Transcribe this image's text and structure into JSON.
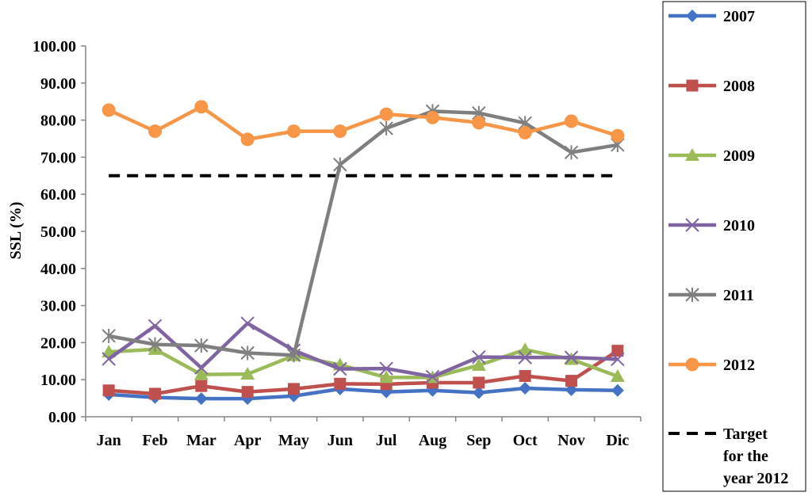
{
  "chart_data": {
    "type": "line",
    "categories": [
      "Jan",
      "Feb",
      "Mar",
      "Apr",
      "May",
      "Jun",
      "Jul",
      "Aug",
      "Sep",
      "Oct",
      "Nov",
      "Dic"
    ],
    "ylabel": "SSL (%)",
    "ylim": [
      0,
      100
    ],
    "yticks": [
      "0.00",
      "10.00",
      "20.00",
      "30.00",
      "40.00",
      "50.00",
      "60.00",
      "70.00",
      "80.00",
      "90.00",
      "100.00"
    ],
    "grid": false,
    "legend_position": "right",
    "series": [
      {
        "name": "2007",
        "color": "#4472C4",
        "marker": "diamond",
        "values": [
          6.0,
          5.2,
          4.9,
          4.9,
          5.6,
          7.5,
          6.7,
          7.1,
          6.5,
          7.7,
          7.3,
          7.1
        ]
      },
      {
        "name": "2008",
        "color": "#C0504D",
        "marker": "square",
        "values": [
          7.1,
          6.2,
          8.3,
          6.7,
          7.5,
          8.9,
          8.8,
          9.2,
          9.2,
          11.0,
          9.7,
          17.8
        ]
      },
      {
        "name": "2009",
        "color": "#9BBB59",
        "marker": "triangle",
        "values": [
          17.5,
          18.2,
          11.4,
          11.5,
          16.5,
          14.0,
          10.6,
          10.6,
          13.9,
          18.1,
          15.5,
          10.9
        ]
      },
      {
        "name": "2010",
        "color": "#8064A2",
        "marker": "x",
        "values": [
          15.6,
          24.5,
          13.2,
          25.2,
          17.9,
          12.9,
          13.0,
          10.8,
          16.1,
          16.0,
          16.0,
          15.5
        ]
      },
      {
        "name": "2011",
        "color": "#7F7F7F",
        "marker": "star",
        "values": [
          21.8,
          19.5,
          19.2,
          17.2,
          16.6,
          68.0,
          77.8,
          82.4,
          81.9,
          79.2,
          71.3,
          73.3
        ]
      },
      {
        "name": "2012",
        "color": "#F79646",
        "marker": "circle",
        "values": [
          82.7,
          77.0,
          83.6,
          74.8,
          77.0,
          77.0,
          81.6,
          80.7,
          79.3,
          76.6,
          79.7,
          75.8
        ]
      },
      {
        "name": "Target for the year 2012",
        "color": "#000000",
        "marker": "none",
        "dashed": true,
        "values": [
          65,
          65,
          65,
          65,
          65,
          65,
          65,
          65,
          65,
          65,
          65,
          65
        ]
      }
    ]
  }
}
